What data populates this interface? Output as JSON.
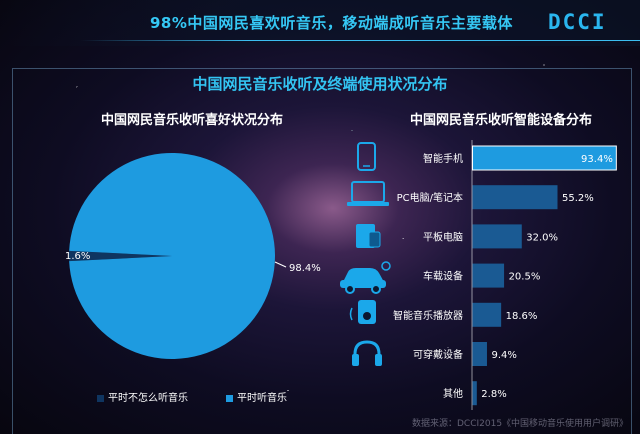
{
  "header": {
    "title": "98%中国网民喜欢听音乐，移动端成听音乐主要载体",
    "logo": "DCCI"
  },
  "main_title": "中国网民音乐收听及终端使用状况分布",
  "source": "数据来源：DCCI2015《中国移动音乐使用用户调研》",
  "colors": {
    "accent": "#33c4f2",
    "pie_major": "#1e9be0",
    "pie_minor": "#0f3560",
    "bar_top": "#1e9be0",
    "bar": "#1a5a93"
  },
  "chart_data": [
    {
      "type": "pie",
      "title": "中国网民音乐收听喜好状况分布",
      "slices": [
        {
          "label": "平时不怎么听音乐",
          "value": 1.6,
          "display": "1.6%"
        },
        {
          "label": "平时听音乐",
          "value": 98.4,
          "display": "98.4%"
        }
      ],
      "legend": "bottom"
    },
    {
      "type": "bar",
      "orientation": "horizontal",
      "title": "中国网民音乐收听智能设备分布",
      "categories": [
        "智能手机",
        "PC电脑/笔记本",
        "平板电脑",
        "车载设备",
        "智能音乐播放器",
        "可穿戴设备",
        "其他"
      ],
      "icons": [
        "smartphone-icon",
        "laptop-icon",
        "tablet-icon",
        "car-icon",
        "music-player-icon",
        "headphones-icon",
        ""
      ],
      "values": [
        93.4,
        55.2,
        32.0,
        20.5,
        18.6,
        9.4,
        2.8
      ],
      "labels": [
        "93.4%",
        "55.2%",
        "32.0%",
        "20.5%",
        "18.6%",
        "9.4%",
        "2.8%"
      ],
      "xlim": [
        0,
        100
      ]
    }
  ]
}
